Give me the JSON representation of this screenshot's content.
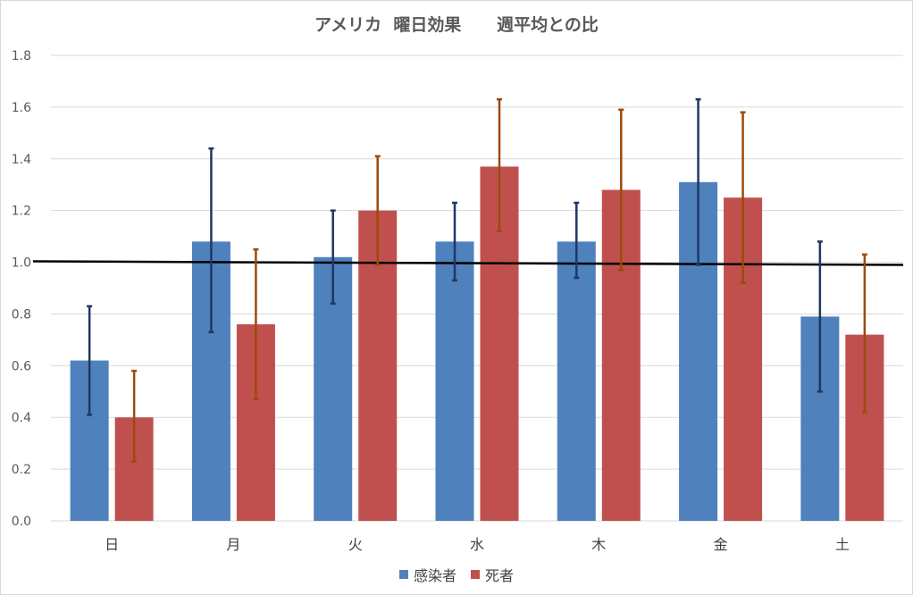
{
  "chart_data": {
    "type": "bar",
    "title": "アメリカ  曜日効果      週平均との比",
    "categories": [
      "日",
      "月",
      "火",
      "水",
      "木",
      "金",
      "土"
    ],
    "series": [
      {
        "name": "感染者",
        "color": "#4f81bd",
        "error_color": "#1f3864",
        "values": [
          0.62,
          1.08,
          1.02,
          1.08,
          1.08,
          1.31,
          0.79
        ],
        "error_low": [
          0.41,
          0.73,
          0.84,
          0.93,
          0.94,
          0.99,
          0.5
        ],
        "error_high": [
          0.83,
          1.44,
          1.2,
          1.23,
          1.23,
          1.63,
          1.08
        ]
      },
      {
        "name": "死者",
        "color": "#c0504d",
        "error_color": "#9c4a0a",
        "values": [
          0.4,
          0.76,
          1.2,
          1.37,
          1.28,
          1.25,
          0.72
        ],
        "error_low": [
          0.23,
          0.47,
          0.99,
          1.12,
          0.97,
          0.92,
          0.42
        ],
        "error_high": [
          0.58,
          1.05,
          1.41,
          1.63,
          1.59,
          1.58,
          1.03
        ]
      }
    ],
    "reference_line": {
      "label": "",
      "value": 1.0
    },
    "ylim": [
      0,
      1.8
    ],
    "yticks": [
      0,
      0.2,
      0.4,
      0.6,
      0.8,
      1.0,
      1.2,
      1.4,
      1.6,
      1.8
    ],
    "ytick_labels": [
      "0.0",
      "0.2",
      "0.4",
      "0.6",
      "0.8",
      "1.0",
      "1.2",
      "1.4",
      "1.6",
      "1.8"
    ],
    "grid": true,
    "legend_position": "bottom",
    "xlabel": "",
    "ylabel": ""
  }
}
